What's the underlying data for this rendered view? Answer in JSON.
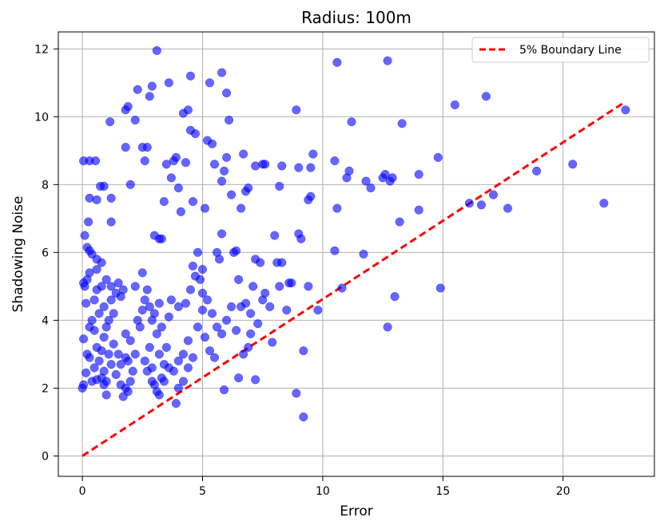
{
  "chart_data": {
    "type": "scatter",
    "title": "Radius: 100m",
    "xlabel": "Error",
    "ylabel": "Shadowing Noise",
    "xlim": [
      -1,
      23.8
    ],
    "ylim": [
      -0.6,
      12.5
    ],
    "xticks": [
      0,
      5,
      10,
      15,
      20
    ],
    "yticks": [
      0,
      2,
      4,
      6,
      8,
      10,
      12
    ],
    "grid": true,
    "legend_position": "top-right",
    "colors": {
      "points": "#0000ff",
      "boundary": "#ff0000"
    },
    "boundary_line": {
      "name": "5% Boundary Line",
      "x": [
        0,
        22.5
      ],
      "y": [
        0,
        10.4
      ],
      "style": "dashed"
    },
    "points": [
      [
        0.05,
        8.7
      ],
      [
        0.3,
        8.7
      ],
      [
        0.55,
        8.7
      ],
      [
        0.1,
        6.5
      ],
      [
        0.2,
        6.15
      ],
      [
        0.25,
        6.9
      ],
      [
        0.3,
        6.05
      ],
      [
        0.4,
        5.95
      ],
      [
        0.1,
        5.0
      ],
      [
        0.05,
        5.1
      ],
      [
        0.2,
        5.2
      ],
      [
        0.3,
        5.4
      ],
      [
        0.15,
        4.5
      ],
      [
        0.4,
        4.0
      ],
      [
        0.5,
        3.7
      ],
      [
        0.3,
        3.8
      ],
      [
        0.05,
        3.45
      ],
      [
        0.2,
        3.0
      ],
      [
        0.3,
        2.9
      ],
      [
        0.15,
        2.45
      ],
      [
        0.05,
        2.1
      ],
      [
        0.0,
        2.0
      ],
      [
        0.4,
        2.2
      ],
      [
        0.6,
        2.25
      ],
      [
        0.8,
        2.3
      ],
      [
        0.5,
        2.6
      ],
      [
        0.7,
        2.8
      ],
      [
        0.9,
        2.5
      ],
      [
        1.0,
        2.2
      ],
      [
        0.6,
        3.2
      ],
      [
        0.8,
        3.1
      ],
      [
        0.9,
        3.5
      ],
      [
        1.0,
        3.8
      ],
      [
        0.7,
        4.2
      ],
      [
        0.9,
        4.4
      ],
      [
        1.1,
        4.0
      ],
      [
        1.2,
        4.6
      ],
      [
        0.5,
        4.6
      ],
      [
        0.6,
        4.9
      ],
      [
        0.8,
        5.0
      ],
      [
        1.0,
        5.2
      ],
      [
        1.2,
        5.0
      ],
      [
        0.6,
        5.5
      ],
      [
        0.8,
        5.7
      ],
      [
        0.6,
        5.8
      ],
      [
        0.3,
        7.6
      ],
      [
        0.6,
        7.55
      ],
      [
        0.75,
        7.95
      ],
      [
        0.9,
        7.95
      ],
      [
        1.2,
        7.6
      ],
      [
        1.2,
        6.9
      ],
      [
        1.15,
        9.85
      ],
      [
        1.3,
        4.2
      ],
      [
        1.4,
        4.8
      ],
      [
        1.5,
        5.1
      ],
      [
        1.6,
        4.7
      ],
      [
        1.7,
        4.9
      ],
      [
        1.3,
        3.3
      ],
      [
        1.5,
        3.0
      ],
      [
        1.6,
        2.7
      ],
      [
        1.8,
        2.9
      ],
      [
        1.4,
        2.4
      ],
      [
        1.6,
        2.1
      ],
      [
        1.8,
        2.0
      ],
      [
        1.7,
        1.75
      ],
      [
        1.9,
        1.9
      ],
      [
        2.0,
        2.2
      ],
      [
        2.1,
        2.5
      ],
      [
        1.9,
        2.8
      ],
      [
        2.2,
        3.0
      ],
      [
        2.0,
        3.4
      ],
      [
        1.8,
        3.6
      ],
      [
        1.0,
        1.8
      ],
      [
        1.2,
        2.7
      ],
      [
        0.9,
        2.1
      ],
      [
        1.1,
        3.0
      ],
      [
        2.3,
        4.0
      ],
      [
        2.4,
        3.8
      ],
      [
        2.5,
        4.3
      ],
      [
        2.6,
        4.6
      ],
      [
        2.2,
        5.0
      ],
      [
        2.5,
        5.4
      ],
      [
        2.7,
        4.9
      ],
      [
        2.8,
        4.4
      ],
      [
        2.9,
        4.0
      ],
      [
        3.0,
        4.2
      ],
      [
        3.2,
        4.5
      ],
      [
        3.1,
        3.6
      ],
      [
        2.8,
        3.2
      ],
      [
        2.6,
        2.8
      ],
      [
        2.7,
        2.5
      ],
      [
        2.9,
        2.2
      ],
      [
        3.0,
        2.1
      ],
      [
        3.1,
        1.9
      ],
      [
        3.3,
        2.3
      ],
      [
        3.4,
        2.7
      ],
      [
        3.2,
        3.0
      ],
      [
        3.5,
        3.2
      ],
      [
        3.3,
        3.8
      ],
      [
        3.6,
        4.1
      ],
      [
        1.8,
        9.1
      ],
      [
        1.8,
        10.2
      ],
      [
        1.9,
        10.3
      ],
      [
        2.0,
        8.0
      ],
      [
        2.3,
        10.8
      ],
      [
        2.2,
        9.9
      ],
      [
        2.5,
        9.1
      ],
      [
        2.6,
        8.7
      ],
      [
        2.7,
        9.1
      ],
      [
        2.8,
        10.6
      ],
      [
        2.9,
        10.9
      ],
      [
        3.0,
        6.5
      ],
      [
        3.2,
        6.4
      ],
      [
        3.3,
        6.4
      ],
      [
        3.4,
        7.5
      ],
      [
        3.1,
        11.95
      ],
      [
        3.5,
        8.6
      ],
      [
        3.6,
        11.0
      ],
      [
        3.7,
        8.2
      ],
      [
        3.8,
        8.7
      ],
      [
        3.9,
        8.8
      ],
      [
        4.0,
        7.9
      ],
      [
        4.1,
        7.2
      ],
      [
        4.2,
        10.1
      ],
      [
        4.3,
        8.65
      ],
      [
        4.4,
        10.2
      ],
      [
        4.5,
        11.2
      ],
      [
        4.5,
        9.6
      ],
      [
        4.7,
        9.5
      ],
      [
        4.6,
        7.5
      ],
      [
        4.8,
        6.0
      ],
      [
        4.6,
        5.6
      ],
      [
        4.9,
        5.2
      ],
      [
        5.0,
        4.8
      ],
      [
        5.1,
        7.3
      ],
      [
        5.2,
        9.3
      ],
      [
        5.3,
        11.0
      ],
      [
        5.4,
        9.2
      ],
      [
        5.5,
        8.6
      ],
      [
        5.6,
        6.0
      ],
      [
        5.7,
        5.8
      ],
      [
        5.8,
        6.55
      ],
      [
        5.8,
        8.1
      ],
      [
        5.9,
        8.4
      ],
      [
        5.8,
        11.3
      ],
      [
        6.0,
        10.7
      ],
      [
        6.1,
        9.9
      ],
      [
        6.0,
        8.8
      ],
      [
        6.2,
        7.7
      ],
      [
        6.3,
        6.0
      ],
      [
        6.4,
        6.05
      ],
      [
        6.6,
        7.3
      ],
      [
        6.7,
        8.9
      ],
      [
        6.8,
        7.8
      ],
      [
        6.9,
        7.9
      ],
      [
        6.5,
        5.2
      ],
      [
        6.6,
        4.4
      ],
      [
        6.8,
        4.5
      ],
      [
        7.0,
        4.2
      ],
      [
        7.1,
        5.0
      ],
      [
        7.2,
        5.8
      ],
      [
        7.4,
        5.7
      ],
      [
        7.5,
        4.6
      ],
      [
        7.3,
        3.9
      ],
      [
        7.0,
        3.6
      ],
      [
        6.9,
        3.2
      ],
      [
        6.7,
        3.0
      ],
      [
        6.5,
        2.3
      ],
      [
        5.9,
        1.95
      ],
      [
        5.5,
        2.9
      ],
      [
        5.3,
        3.1
      ],
      [
        5.1,
        3.5
      ],
      [
        5.0,
        4.3
      ],
      [
        4.8,
        3.8
      ],
      [
        4.6,
        2.9
      ],
      [
        4.4,
        2.6
      ],
      [
        4.2,
        2.2
      ],
      [
        4.0,
        2.0
      ],
      [
        3.9,
        1.55
      ],
      [
        3.8,
        2.5
      ],
      [
        4.0,
        2.8
      ],
      [
        4.2,
        3.0
      ],
      [
        4.4,
        3.4
      ],
      [
        3.6,
        2.6
      ],
      [
        3.4,
        2.2
      ],
      [
        3.2,
        1.8
      ],
      [
        2.9,
        2.6
      ],
      [
        3.7,
        4.6
      ],
      [
        4.0,
        4.4
      ],
      [
        4.3,
        4.5
      ],
      [
        4.5,
        4.9
      ],
      [
        4.7,
        5.3
      ],
      [
        5.0,
        5.5
      ],
      [
        5.2,
        4.6
      ],
      [
        5.4,
        4.2
      ],
      [
        5.6,
        3.8
      ],
      [
        5.8,
        3.6
      ],
      [
        6.0,
        4.0
      ],
      [
        6.2,
        4.4
      ],
      [
        6.4,
        3.7
      ],
      [
        7.2,
        8.55
      ],
      [
        7.5,
        8.6
      ],
      [
        7.6,
        8.6
      ],
      [
        7.2,
        2.25
      ],
      [
        7.6,
        4.8
      ],
      [
        7.8,
        4.4
      ],
      [
        7.9,
        3.35
      ],
      [
        8.0,
        6.5
      ],
      [
        8.1,
        5.7
      ],
      [
        8.2,
        7.95
      ],
      [
        8.3,
        8.55
      ],
      [
        8.2,
        5.0
      ],
      [
        8.3,
        5.7
      ],
      [
        8.5,
        4.3
      ],
      [
        8.6,
        5.1
      ],
      [
        8.7,
        5.1
      ],
      [
        8.9,
        10.2
      ],
      [
        9.0,
        8.5
      ],
      [
        9.0,
        6.55
      ],
      [
        9.1,
        6.4
      ],
      [
        9.2,
        3.1
      ],
      [
        9.2,
        1.15
      ],
      [
        8.9,
        1.85
      ],
      [
        9.4,
        5.0
      ],
      [
        9.4,
        7.55
      ],
      [
        9.5,
        7.65
      ],
      [
        9.5,
        8.5
      ],
      [
        9.6,
        8.9
      ],
      [
        9.8,
        4.3
      ],
      [
        10.5,
        6.05
      ],
      [
        10.5,
        8.7
      ],
      [
        10.6,
        7.3
      ],
      [
        10.6,
        11.6
      ],
      [
        10.8,
        4.95
      ],
      [
        11.0,
        8.2
      ],
      [
        11.1,
        8.4
      ],
      [
        11.2,
        9.85
      ],
      [
        11.7,
        5.95
      ],
      [
        11.8,
        8.1
      ],
      [
        12.0,
        7.9
      ],
      [
        12.5,
        8.2
      ],
      [
        12.6,
        8.3
      ],
      [
        12.7,
        3.8
      ],
      [
        12.7,
        11.65
      ],
      [
        12.8,
        8.1
      ],
      [
        12.9,
        8.2
      ],
      [
        13.0,
        4.7
      ],
      [
        13.2,
        6.9
      ],
      [
        13.3,
        9.8
      ],
      [
        14.0,
        7.25
      ],
      [
        14.0,
        8.3
      ],
      [
        14.8,
        8.8
      ],
      [
        14.9,
        4.95
      ],
      [
        15.5,
        10.35
      ],
      [
        16.1,
        7.45
      ],
      [
        16.6,
        7.4
      ],
      [
        16.8,
        10.6
      ],
      [
        17.1,
        7.7
      ],
      [
        17.7,
        7.3
      ],
      [
        18.9,
        8.4
      ],
      [
        20.4,
        8.6
      ],
      [
        21.7,
        7.45
      ],
      [
        22.6,
        10.2
      ]
    ]
  }
}
